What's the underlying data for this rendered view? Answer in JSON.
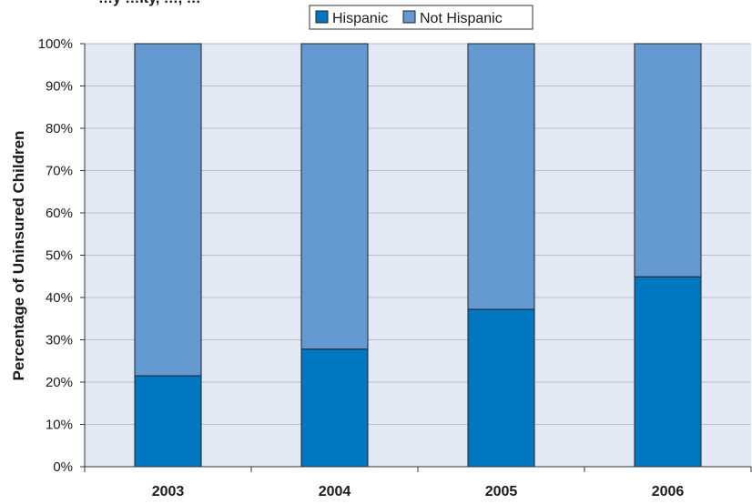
{
  "chart_data": {
    "type": "bar",
    "stacked": true,
    "title_fragment": "…y …ity, …, …",
    "categories": [
      "2003",
      "2004",
      "2005",
      "2006"
    ],
    "series": [
      {
        "name": "Hispanic",
        "values": [
          21.5,
          27.8,
          37.2,
          44.9
        ]
      },
      {
        "name": "Not Hispanic",
        "values": [
          78.5,
          72.2,
          62.8,
          55.1
        ]
      }
    ],
    "ylabel": "Percentage of Uninsured Children",
    "xlabel": "",
    "ylim": [
      0,
      100
    ],
    "ytick_labels": [
      "0%",
      "10%",
      "20%",
      "30%",
      "40%",
      "50%",
      "60%",
      "70%",
      "80%",
      "90%",
      "100%"
    ],
    "grid": true,
    "legend_position": "top-center",
    "colors": {
      "Hispanic": "#0077c0",
      "Not Hispanic": "#6499d2",
      "plot_background": "#e2e9f5",
      "gridline": "#b9c0cc",
      "axis": "#333333"
    }
  }
}
